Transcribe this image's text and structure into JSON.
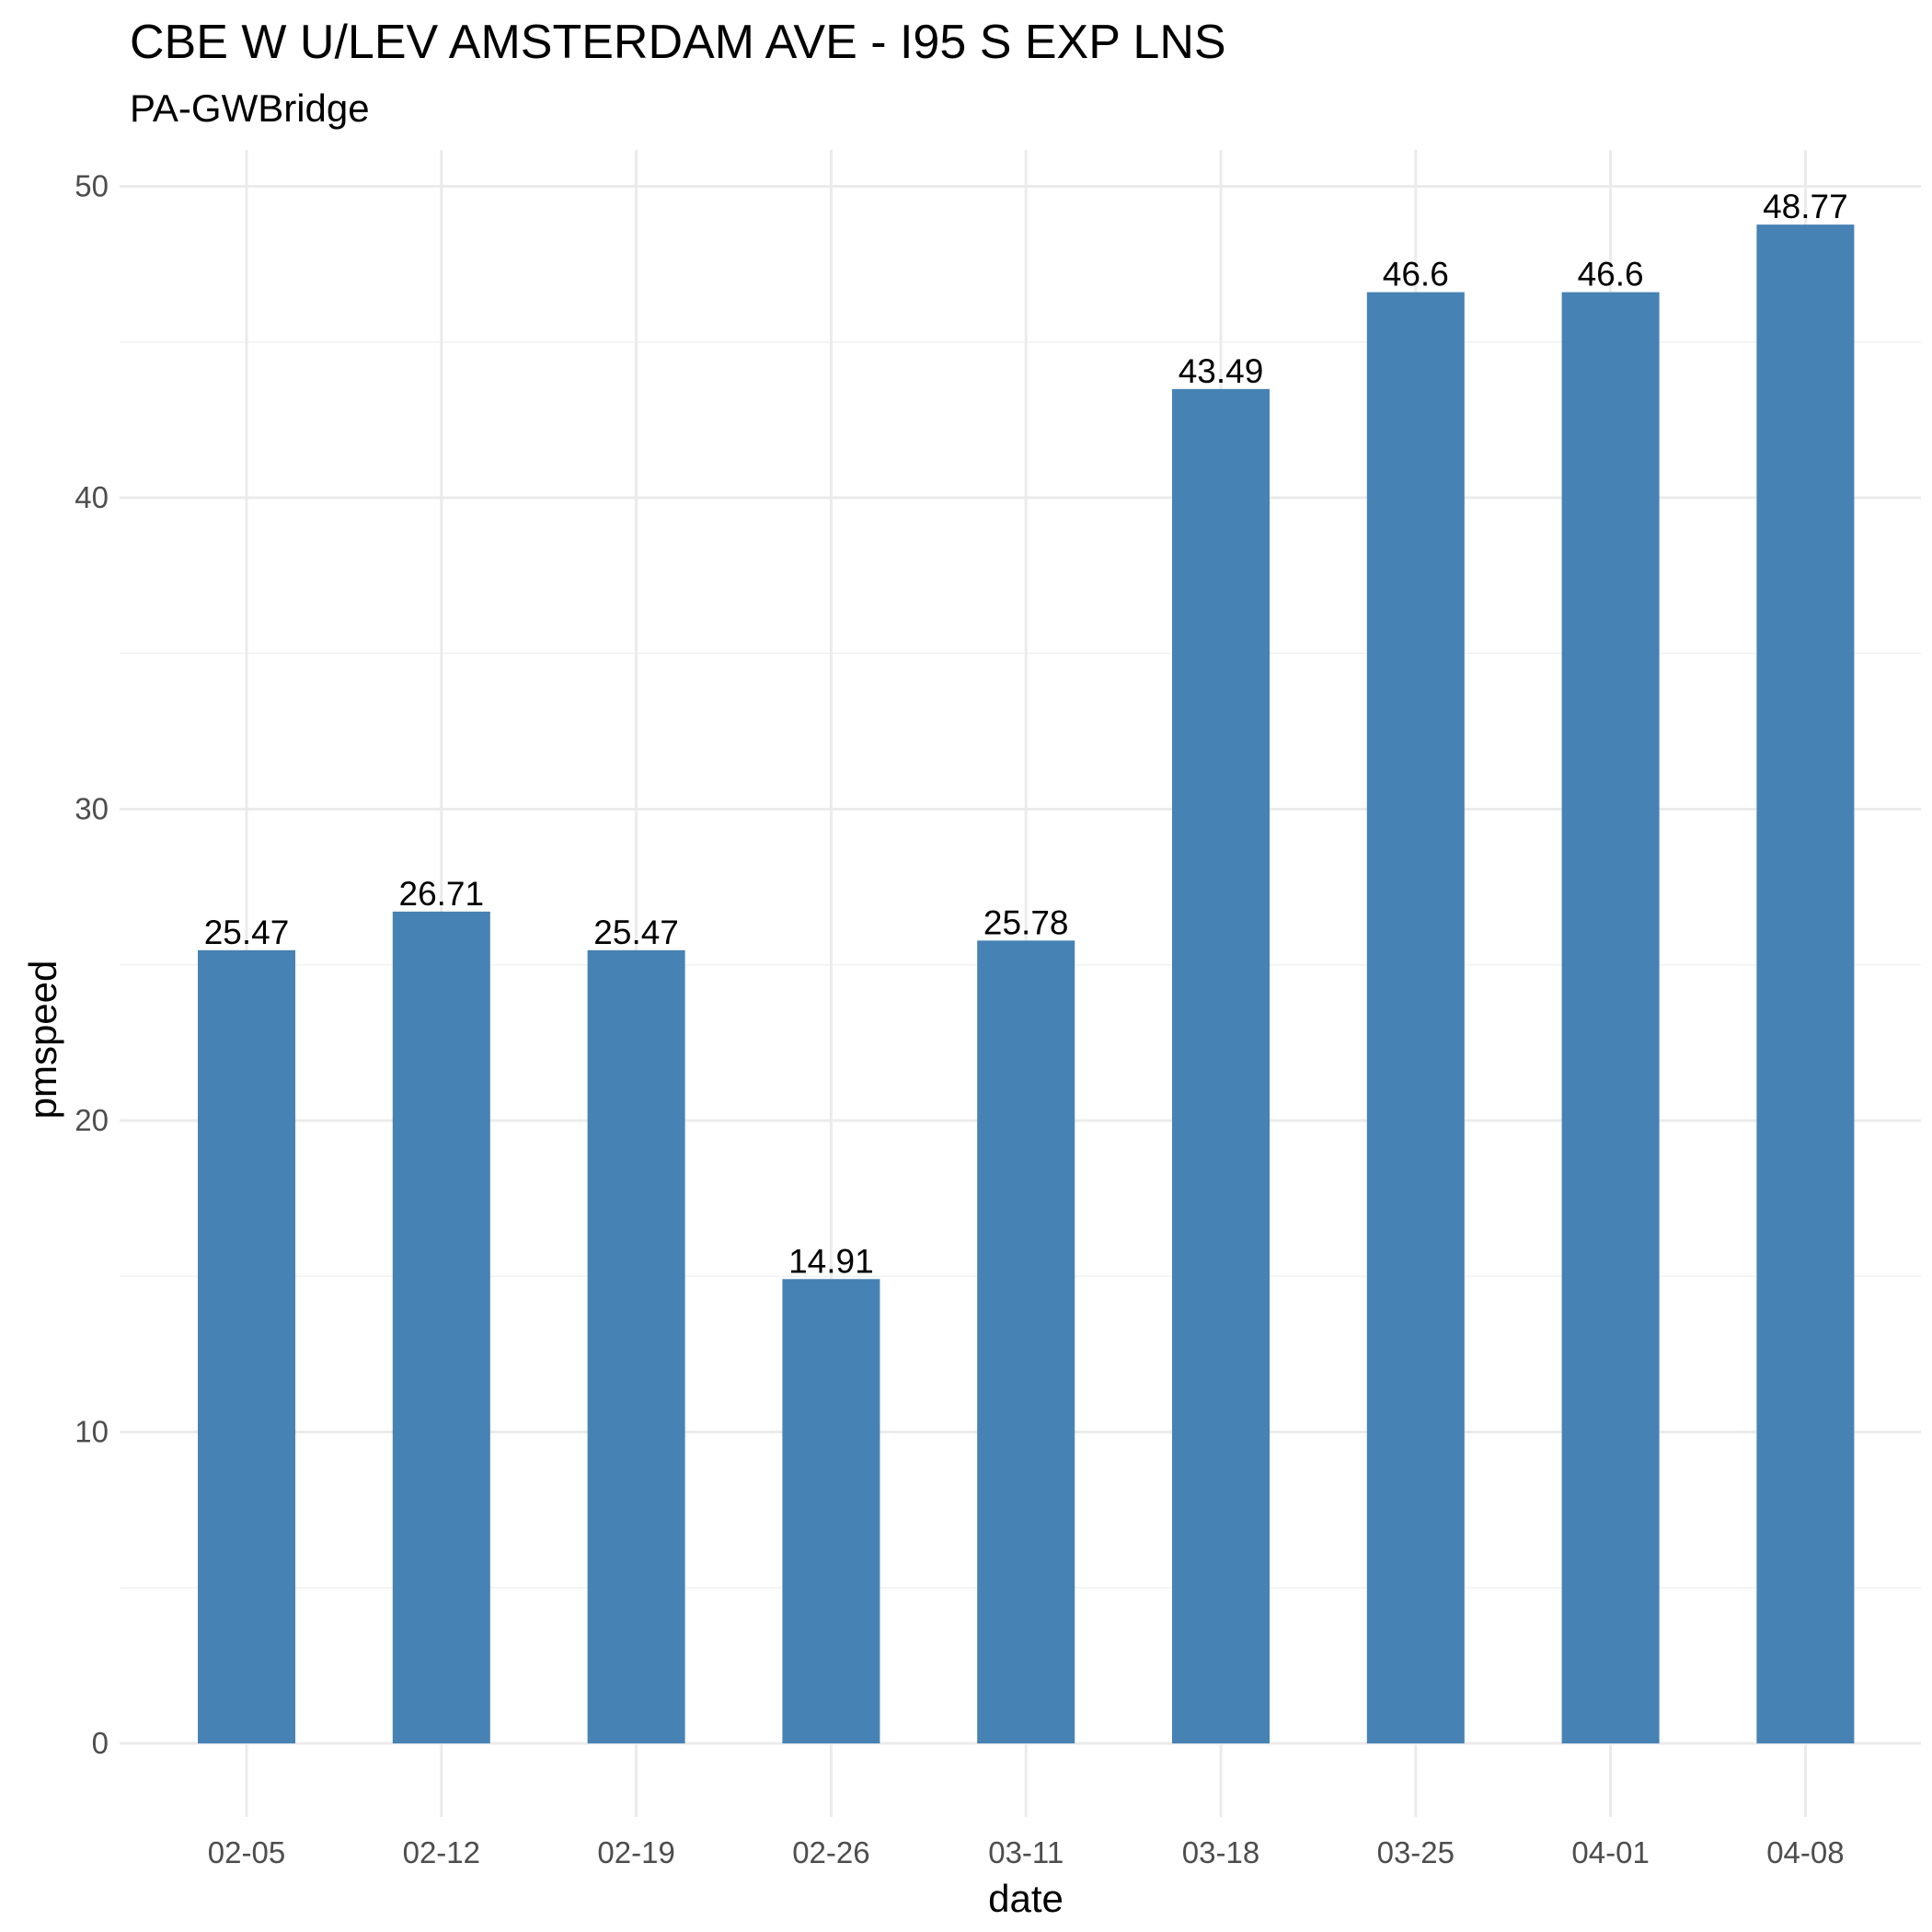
{
  "chart_data": {
    "type": "bar",
    "title": "CBE W U/LEV AMSTERDAM AVE - I95 S EXP LNS",
    "subtitle": "PA-GWBridge",
    "xlabel": "date",
    "ylabel": "pmspeed",
    "categories": [
      "02-05",
      "02-12",
      "02-19",
      "02-26",
      "03-11",
      "03-18",
      "03-25",
      "04-01",
      "04-08"
    ],
    "values": [
      25.47,
      26.71,
      25.47,
      14.91,
      25.78,
      43.49,
      46.6,
      46.6,
      48.77
    ],
    "value_labels": [
      "25.47",
      "26.71",
      "25.47",
      "14.91",
      "25.78",
      "43.49",
      "46.6",
      "46.6",
      "48.77"
    ],
    "ylim": [
      0,
      51.2
    ],
    "y_ticks": [
      0,
      10,
      20,
      30,
      40,
      50
    ],
    "y_tick_labels": [
      "0",
      "10",
      "20",
      "30",
      "40",
      "50"
    ],
    "grid": true,
    "legend": "none",
    "bar_color": "#4682B4",
    "theme": "minimal"
  }
}
